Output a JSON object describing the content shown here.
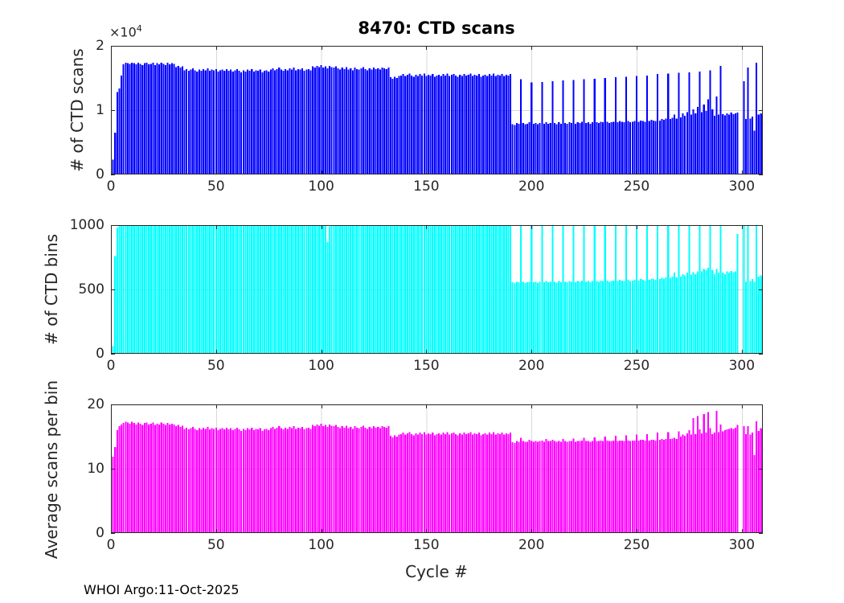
{
  "figure": {
    "title": "8470: CTD scans",
    "xlabel": "Cycle #",
    "footer": "WHOI Argo:11-Oct-2025",
    "background": "#ffffff",
    "axis_color": "#262626",
    "grid_color": "#d9d9d9",
    "exponent_label": {
      "mantissa": "×10",
      "exp": "4"
    }
  },
  "x_axis": {
    "lim": [
      0,
      310
    ],
    "ticks": [
      0,
      50,
      100,
      150,
      200,
      250,
      300
    ],
    "tick_labels": [
      "0",
      "50",
      "100",
      "150",
      "200",
      "250",
      "300"
    ]
  },
  "chart_data": [
    {
      "type": "bar",
      "title": "8470: CTD scans",
      "ylabel": "# of CTD scans",
      "y_scale_label": "×10^4",
      "color": "#0000ff",
      "ylim": [
        0,
        20000
      ],
      "yticks": [
        0,
        10000,
        20000
      ],
      "ytick_labels": [
        "0",
        "1",
        "2"
      ],
      "grid": true,
      "x_start": 1,
      "values": [
        2300,
        6500,
        12800,
        13400,
        15400,
        17100,
        17400,
        17300,
        17200,
        17400,
        17300,
        17100,
        17400,
        17200,
        17000,
        17300,
        17400,
        17100,
        17200,
        17400,
        17000,
        17300,
        17100,
        17400,
        17200,
        17000,
        17400,
        17100,
        17300,
        17200,
        16700,
        16900,
        16600,
        16800,
        16200,
        16400,
        16100,
        16300,
        16500,
        16200,
        16000,
        16300,
        16100,
        16400,
        16200,
        16500,
        16100,
        16300,
        16200,
        16400,
        16000,
        16200,
        16300,
        16100,
        16400,
        16100,
        16300,
        16000,
        16200,
        16400,
        16100,
        15900,
        16200,
        16000,
        16300,
        16100,
        16400,
        16000,
        16200,
        16100,
        16300,
        15900,
        16100,
        16200,
        16000,
        16300,
        16500,
        16200,
        16400,
        16600,
        16300,
        16100,
        16400,
        16200,
        16500,
        16300,
        16600,
        16200,
        16400,
        16300,
        16500,
        16100,
        16300,
        16400,
        16200,
        16800,
        16600,
        16900,
        16700,
        17000,
        16600,
        16800,
        16500,
        16900,
        16700,
        16600,
        16800,
        16500,
        16300,
        16600,
        16400,
        16700,
        16300,
        16500,
        16200,
        16600,
        16400,
        16300,
        16500,
        16700,
        16400,
        16200,
        16500,
        16300,
        16600,
        16400,
        16500,
        16300,
        16600,
        16500,
        16400,
        16600,
        15100,
        14900,
        15200,
        15000,
        15300,
        15400,
        15600,
        15300,
        15500,
        15700,
        15400,
        15200,
        15500,
        15300,
        15600,
        15400,
        15700,
        15300,
        15500,
        15400,
        15600,
        15200,
        15400,
        15500,
        15300,
        15600,
        15400,
        15700,
        15300,
        15500,
        15600,
        15400,
        15200,
        15500,
        15300,
        15600,
        15400,
        15500,
        15700,
        15300,
        15500,
        15400,
        15600,
        15200,
        15400,
        15500,
        15300,
        15600,
        15400,
        15700,
        15300,
        15500,
        15400,
        15600,
        15300,
        15500,
        15400,
        15600,
        7800,
        7700,
        8000,
        7900,
        14800,
        8000,
        7800,
        7900,
        8100,
        14300,
        7900,
        8000,
        7800,
        8000,
        14400,
        7900,
        8100,
        7900,
        8000,
        14500,
        8000,
        7800,
        8100,
        7900,
        14600,
        8000,
        7900,
        8100,
        8000,
        14700,
        7900,
        8100,
        8000,
        8200,
        14800,
        8000,
        8100,
        7900,
        8100,
        14900,
        8100,
        8000,
        8200,
        8100,
        15000,
        8200,
        8000,
        8100,
        8200,
        15100,
        8100,
        8300,
        8200,
        8100,
        15200,
        8300,
        8100,
        8200,
        8300,
        15300,
        8200,
        8400,
        8300,
        8200,
        15400,
        8300,
        8500,
        8400,
        8300,
        15600,
        8400,
        8600,
        8500,
        8700,
        15700,
        8600,
        8800,
        9300,
        8700,
        15800,
        8900,
        9500,
        9100,
        9700,
        15900,
        9300,
        10100,
        9500,
        10500,
        16000,
        9700,
        10900,
        9900,
        11700,
        16200,
        10100,
        9100,
        12100,
        9300,
        16900,
        9400,
        9200,
        9500,
        9300,
        9600,
        9400,
        9500,
        9600,
        0,
        0,
        14500,
        8600,
        16600,
        8700,
        9000,
        6800,
        17400,
        9300,
        9500,
        9400
      ]
    },
    {
      "type": "bar",
      "ylabel": "# of CTD bins",
      "color": "#00ffff",
      "ylim": [
        0,
        1000
      ],
      "yticks": [
        0,
        500,
        1000
      ],
      "ytick_labels": [
        "0",
        "500",
        "1000"
      ],
      "grid": true,
      "x_start": 1,
      "values": [
        60,
        760,
        980,
        1000,
        1000,
        1000,
        1000,
        1000,
        1000,
        1000,
        1000,
        1000,
        1000,
        1000,
        1000,
        1000,
        1000,
        1000,
        1000,
        1000,
        1000,
        1000,
        1000,
        1000,
        1000,
        1000,
        1000,
        1000,
        1000,
        1000,
        1000,
        1000,
        1000,
        1000,
        1000,
        1000,
        1000,
        1000,
        1000,
        1000,
        1000,
        1000,
        1000,
        1000,
        1000,
        1000,
        1000,
        1000,
        1000,
        1000,
        1000,
        1000,
        1000,
        1000,
        1000,
        1000,
        1000,
        1000,
        1000,
        1000,
        1000,
        1000,
        1000,
        1000,
        1000,
        1000,
        1000,
        1000,
        1000,
        1000,
        1000,
        1000,
        1000,
        1000,
        1000,
        1000,
        1000,
        1000,
        1000,
        1000,
        1000,
        1000,
        1000,
        1000,
        1000,
        1000,
        1000,
        1000,
        1000,
        1000,
        1000,
        1000,
        1000,
        1000,
        1000,
        1000,
        1000,
        1000,
        1000,
        1000,
        1000,
        1000,
        870,
        990,
        1000,
        1000,
        1000,
        1000,
        1000,
        1000,
        1000,
        1000,
        1000,
        1000,
        1000,
        1000,
        1000,
        1000,
        1000,
        1000,
        1000,
        1000,
        1000,
        1000,
        1000,
        1000,
        1000,
        1000,
        1000,
        1000,
        1000,
        1000,
        1000,
        1000,
        1000,
        1000,
        1000,
        1000,
        1000,
        1000,
        1000,
        1000,
        1000,
        1000,
        1000,
        1000,
        1000,
        1000,
        1000,
        1000,
        1000,
        1000,
        1000,
        1000,
        1000,
        1000,
        1000,
        1000,
        1000,
        1000,
        1000,
        1000,
        1000,
        1000,
        1000,
        1000,
        1000,
        1000,
        1000,
        1000,
        1000,
        1000,
        1000,
        1000,
        1000,
        1000,
        1000,
        1000,
        1000,
        1000,
        1000,
        1000,
        1000,
        1000,
        1000,
        1000,
        1000,
        1000,
        1000,
        1000,
        555,
        550,
        560,
        555,
        1000,
        560,
        550,
        555,
        560,
        1000,
        555,
        560,
        550,
        560,
        1000,
        555,
        565,
        555,
        560,
        1000,
        560,
        550,
        565,
        555,
        1000,
        560,
        555,
        565,
        560,
        1000,
        555,
        565,
        560,
        570,
        1000,
        560,
        565,
        555,
        565,
        1000,
        565,
        560,
        570,
        565,
        1000,
        570,
        560,
        565,
        570,
        1000,
        565,
        575,
        570,
        565,
        1000,
        575,
        565,
        570,
        575,
        1000,
        570,
        580,
        575,
        570,
        1000,
        575,
        585,
        580,
        575,
        1000,
        580,
        590,
        585,
        595,
        1000,
        590,
        600,
        630,
        595,
        1000,
        600,
        620,
        610,
        630,
        1000,
        615,
        635,
        620,
        640,
        1000,
        640,
        660,
        650,
        670,
        1000,
        650,
        620,
        660,
        630,
        1000,
        630,
        620,
        640,
        630,
        645,
        635,
        640,
        930,
        0,
        0,
        1000,
        560,
        1000,
        565,
        580,
        560,
        1000,
        600,
        610,
        600
      ]
    },
    {
      "type": "bar",
      "ylabel": "Average scans per bin",
      "xlabel": "Cycle #",
      "color": "#ff00ff",
      "ylim": [
        0,
        20
      ],
      "yticks": [
        0,
        10,
        20
      ],
      "ytick_labels": [
        "0",
        "10",
        "20"
      ],
      "grid": true,
      "x_start": 1,
      "values": [
        11.9,
        13.4,
        16.0,
        16.6,
        16.9,
        17.1,
        17.3,
        17.2,
        17.0,
        17.3,
        17.1,
        16.9,
        17.2,
        17.0,
        16.8,
        17.1,
        17.2,
        16.9,
        17.0,
        17.2,
        16.8,
        17.0,
        16.9,
        17.2,
        17.0,
        16.8,
        17.1,
        16.9,
        17.0,
        16.9,
        16.6,
        16.8,
        16.5,
        16.7,
        16.2,
        16.4,
        16.1,
        16.3,
        16.5,
        16.2,
        16.0,
        16.3,
        16.1,
        16.4,
        16.2,
        16.5,
        16.1,
        16.3,
        16.2,
        16.4,
        16.0,
        16.2,
        16.3,
        16.1,
        16.4,
        16.1,
        16.3,
        16.0,
        16.2,
        16.4,
        16.1,
        15.9,
        16.2,
        16.0,
        16.3,
        16.1,
        16.4,
        16.0,
        16.2,
        16.1,
        16.3,
        15.9,
        16.1,
        16.2,
        16.0,
        16.3,
        16.5,
        16.2,
        16.4,
        16.6,
        16.3,
        16.1,
        16.4,
        16.2,
        16.5,
        16.3,
        16.6,
        16.2,
        16.4,
        16.3,
        16.5,
        16.1,
        16.3,
        16.4,
        16.2,
        16.8,
        16.6,
        16.9,
        16.7,
        17.0,
        16.6,
        16.8,
        16.5,
        16.9,
        16.7,
        16.6,
        16.8,
        16.5,
        16.3,
        16.6,
        16.4,
        16.7,
        16.3,
        16.5,
        16.2,
        16.6,
        16.4,
        16.3,
        16.5,
        16.7,
        16.4,
        16.2,
        16.5,
        16.3,
        16.6,
        16.4,
        16.5,
        16.3,
        16.6,
        16.5,
        16.4,
        16.6,
        15.1,
        14.9,
        15.2,
        15.0,
        15.3,
        15.4,
        15.6,
        15.3,
        15.5,
        15.7,
        15.4,
        15.2,
        15.5,
        15.3,
        15.6,
        15.4,
        15.7,
        15.3,
        15.5,
        15.4,
        15.6,
        15.2,
        15.4,
        15.5,
        15.3,
        15.6,
        15.4,
        15.7,
        15.3,
        15.5,
        15.6,
        15.4,
        15.2,
        15.5,
        15.3,
        15.6,
        15.4,
        15.5,
        15.7,
        15.3,
        15.5,
        15.4,
        15.6,
        15.2,
        15.4,
        15.5,
        15.3,
        15.6,
        15.4,
        15.7,
        15.3,
        15.5,
        15.4,
        15.6,
        15.3,
        15.5,
        15.4,
        15.6,
        14.1,
        14.0,
        14.3,
        14.2,
        14.8,
        14.3,
        14.2,
        14.2,
        14.5,
        14.3,
        14.2,
        14.3,
        14.2,
        14.3,
        14.4,
        14.2,
        14.6,
        14.3,
        14.3,
        14.5,
        14.3,
        14.2,
        14.3,
        14.2,
        14.6,
        14.3,
        14.2,
        14.3,
        14.3,
        14.7,
        14.2,
        14.3,
        14.3,
        14.4,
        14.8,
        14.3,
        14.3,
        14.2,
        14.3,
        14.9,
        14.3,
        14.3,
        14.4,
        14.3,
        15.0,
        14.4,
        14.3,
        14.3,
        14.4,
        15.1,
        14.3,
        14.4,
        14.4,
        14.3,
        15.2,
        14.4,
        14.3,
        14.4,
        14.4,
        15.3,
        14.4,
        14.5,
        14.5,
        14.4,
        15.4,
        14.4,
        14.5,
        14.5,
        14.4,
        15.6,
        14.5,
        14.6,
        14.5,
        14.6,
        15.7,
        14.6,
        14.7,
        14.8,
        14.6,
        15.8,
        15.0,
        15.3,
        15.1,
        15.5,
        16.0,
        15.3,
        17.9,
        15.4,
        18.2,
        16.1,
        15.5,
        18.5,
        15.6,
        18.8,
        16.3,
        15.4,
        15.6,
        19.0,
        15.7,
        16.9,
        15.8,
        16.0,
        16.1,
        16.2,
        16.3,
        16.2,
        16.4,
        16.8,
        0,
        0,
        16.6,
        15.4,
        16.6,
        15.3,
        15.6,
        12.1,
        17.4,
        15.9,
        16.3,
        16.2
      ]
    }
  ]
}
